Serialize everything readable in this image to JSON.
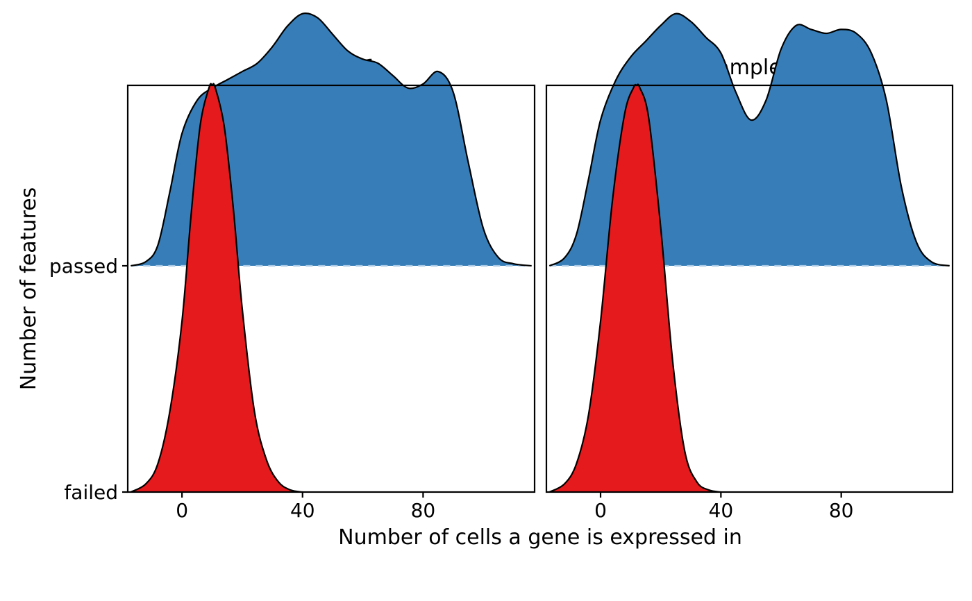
{
  "chart_data": {
    "type": "area",
    "subtype": "ridgeline",
    "xlabel": "Number of cells a gene is expressed in",
    "ylabel": "Number of features",
    "x_range": [
      -18,
      117
    ],
    "x_ticks": [
      0,
      40,
      80
    ],
    "y_categories": [
      "failed",
      "passed"
    ],
    "colors": {
      "passed": "#377EB8",
      "failed": "#E41A1C"
    },
    "ridge_scale": {
      "passed_peak_rel": 0.62,
      "failed_peak_rel": 1.0
    },
    "panels": [
      {
        "title": "Sample1",
        "series": [
          {
            "name": "passed",
            "x": [
              -17,
              -12,
              -8,
              -4,
              0,
              5,
              10,
              15,
              20,
              25,
              30,
              35,
              40,
              45,
              50,
              55,
              60,
              65,
              70,
              75,
              80,
              85,
              90,
              95,
              100,
              105,
              110,
              116
            ],
            "density": [
              0.0,
              0.01,
              0.05,
              0.18,
              0.32,
              0.4,
              0.43,
              0.45,
              0.47,
              0.49,
              0.53,
              0.58,
              0.61,
              0.6,
              0.56,
              0.52,
              0.5,
              0.49,
              0.46,
              0.43,
              0.44,
              0.47,
              0.42,
              0.25,
              0.09,
              0.02,
              0.005,
              0.0
            ]
          },
          {
            "name": "failed",
            "x": [
              -17,
              -12,
              -8,
              -4,
              0,
              3,
              6,
              9,
              10,
              11,
              14,
              17,
              20,
              24,
              28,
              32,
              36,
              40
            ],
            "density": [
              0.0,
              0.02,
              0.07,
              0.2,
              0.42,
              0.68,
              0.9,
              0.995,
              1.0,
              0.995,
              0.9,
              0.7,
              0.45,
              0.2,
              0.08,
              0.025,
              0.005,
              0.0
            ]
          }
        ]
      },
      {
        "title": "Sample2",
        "series": [
          {
            "name": "passed",
            "x": [
              -17,
              -12,
              -8,
              -4,
              0,
              5,
              10,
              15,
              20,
              25,
              30,
              35,
              40,
              45,
              50,
              55,
              60,
              65,
              70,
              75,
              80,
              85,
              90,
              95,
              100,
              105,
              110,
              116
            ],
            "density": [
              0.0,
              0.02,
              0.08,
              0.22,
              0.37,
              0.47,
              0.53,
              0.57,
              0.61,
              0.64,
              0.62,
              0.58,
              0.54,
              0.44,
              0.37,
              0.42,
              0.55,
              0.61,
              0.6,
              0.59,
              0.6,
              0.59,
              0.54,
              0.42,
              0.2,
              0.06,
              0.01,
              0.0
            ]
          },
          {
            "name": "failed",
            "x": [
              -17,
              -12,
              -8,
              -4,
              0,
              4,
              8,
              11,
              12,
              13,
              16,
              20,
              24,
              28,
              32,
              36,
              40
            ],
            "density": [
              0.0,
              0.02,
              0.07,
              0.19,
              0.42,
              0.72,
              0.93,
              0.995,
              1.0,
              0.995,
              0.92,
              0.65,
              0.32,
              0.1,
              0.025,
              0.005,
              0.0
            ]
          }
        ]
      }
    ]
  }
}
